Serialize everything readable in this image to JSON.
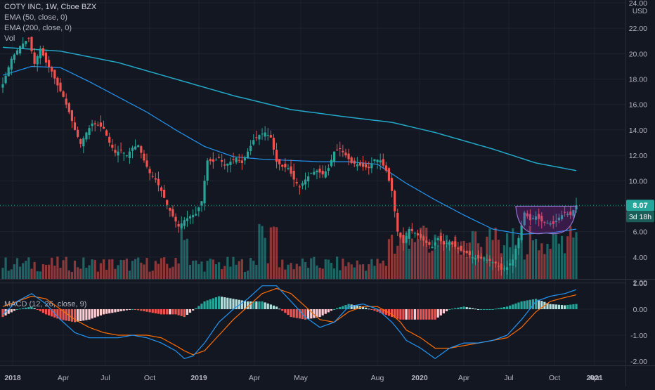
{
  "header": {
    "symbol_line": "COTY INC, 1W, Cboe BZX",
    "ema50_label": "EMA (50, close, 0)",
    "ema200_label": "EMA (200, close, 0)",
    "vol_label": "Vol",
    "currency": "USD",
    "price_tag": "8.07",
    "countdown_tag": "3d 18h"
  },
  "macd_panel": {
    "label": "MACD (12, 26, close, 9)"
  },
  "colors": {
    "background": "#131722",
    "up": "#26a69a",
    "down": "#ef5350",
    "ema50": "#2196f3",
    "ema200": "#22a8c9",
    "macd_line": "#2196f3",
    "signal_line": "#ff6d00",
    "pattern": "#9c27b0",
    "grid": "#1e222d",
    "axis_text": "#b2b5be"
  },
  "chart_data": [
    {
      "type": "candlestick",
      "title": "COTY INC, 1W, Cboe BZX",
      "price_axis": {
        "ticks": [
          "2.00",
          "4.00",
          "6.00",
          "8.00",
          "10.00",
          "12.00",
          "14.00",
          "16.00",
          "18.00",
          "20.00",
          "22.00",
          "24.00"
        ],
        "ylim": [
          1.0,
          24.5
        ],
        "last_price": 8.07,
        "unit": "USD"
      },
      "time_axis": {
        "labels": [
          "2018",
          "Apr",
          "Jul",
          "Oct",
          "2019",
          "Apr",
          "May",
          "Aug",
          "2020",
          "Apr",
          "Jul",
          "Oct",
          "2021",
          "Apr"
        ]
      },
      "close_path": [
        [
          0,
          17.6
        ],
        [
          3,
          19.6
        ],
        [
          6,
          20.6
        ],
        [
          9,
          21.2
        ],
        [
          11,
          19.2
        ],
        [
          13,
          20.4
        ],
        [
          15,
          19.3
        ],
        [
          17,
          18.6
        ],
        [
          19,
          17.5
        ],
        [
          21,
          16.6
        ],
        [
          23,
          15.4
        ],
        [
          25,
          14.0
        ],
        [
          27,
          12.9
        ],
        [
          29,
          13.8
        ],
        [
          31,
          14.5
        ],
        [
          33,
          14.4
        ],
        [
          35,
          14.1
        ],
        [
          37,
          13.0
        ],
        [
          39,
          12.2
        ],
        [
          41,
          12.4
        ],
        [
          43,
          12.0
        ],
        [
          45,
          12.6
        ],
        [
          47,
          12.8
        ],
        [
          49,
          11.6
        ],
        [
          51,
          10.6
        ],
        [
          53,
          10.1
        ],
        [
          55,
          9.2
        ],
        [
          57,
          8.1
        ],
        [
          59,
          7.2
        ],
        [
          61,
          6.4
        ],
        [
          63,
          6.9
        ],
        [
          65,
          7.2
        ],
        [
          67,
          7.4
        ],
        [
          69,
          8.4
        ],
        [
          71,
          11.6
        ],
        [
          73,
          11.5
        ],
        [
          75,
          11.8
        ],
        [
          77,
          11.2
        ],
        [
          79,
          11.5
        ],
        [
          81,
          11.8
        ],
        [
          83,
          11.4
        ],
        [
          85,
          12.3
        ],
        [
          87,
          13.2
        ],
        [
          89,
          13.6
        ],
        [
          91,
          13.8
        ],
        [
          93,
          13.4
        ],
        [
          95,
          11.5
        ],
        [
          97,
          11.1
        ],
        [
          99,
          11.0
        ],
        [
          101,
          10.1
        ],
        [
          103,
          9.5
        ],
        [
          105,
          10.1
        ],
        [
          107,
          10.6
        ],
        [
          109,
          10.8
        ],
        [
          111,
          10.5
        ],
        [
          113,
          11.0
        ],
        [
          115,
          12.3
        ],
        [
          117,
          12.5
        ],
        [
          119,
          12.0
        ],
        [
          121,
          11.4
        ],
        [
          123,
          11.3
        ],
        [
          125,
          11.1
        ],
        [
          127,
          11.0
        ],
        [
          129,
          11.7
        ],
        [
          131,
          11.6
        ],
        [
          133,
          10.8
        ],
        [
          135,
          9.2
        ],
        [
          137,
          6.0
        ],
        [
          139,
          5.1
        ],
        [
          141,
          6.2
        ],
        [
          143,
          5.9
        ],
        [
          145,
          5.5
        ],
        [
          147,
          5.1
        ],
        [
          149,
          4.8
        ],
        [
          151,
          5.5
        ],
        [
          153,
          5.0
        ],
        [
          155,
          5.2
        ],
        [
          157,
          4.8
        ],
        [
          159,
          4.5
        ],
        [
          161,
          4.3
        ],
        [
          163,
          4.0
        ],
        [
          165,
          3.9
        ],
        [
          167,
          3.9
        ],
        [
          169,
          3.7
        ],
        [
          171,
          3.5
        ],
        [
          173,
          3.0
        ],
        [
          175,
          3.2
        ],
        [
          177,
          3.8
        ],
        [
          179,
          5.5
        ],
        [
          181,
          7.5
        ],
        [
          183,
          6.9
        ],
        [
          185,
          7.2
        ],
        [
          187,
          6.8
        ],
        [
          189,
          6.7
        ],
        [
          191,
          6.6
        ],
        [
          193,
          7.1
        ],
        [
          195,
          7.5
        ],
        [
          197,
          7.3
        ],
        [
          199,
          8.07
        ]
      ],
      "ema50": [
        [
          0,
          18.3
        ],
        [
          10,
          19.0
        ],
        [
          20,
          18.9
        ],
        [
          30,
          17.8
        ],
        [
          40,
          16.6
        ],
        [
          50,
          15.4
        ],
        [
          60,
          14.0
        ],
        [
          70,
          12.7
        ],
        [
          80,
          11.9
        ],
        [
          90,
          11.7
        ],
        [
          100,
          11.6
        ],
        [
          110,
          11.5
        ],
        [
          120,
          11.5
        ],
        [
          130,
          11.3
        ],
        [
          140,
          9.8
        ],
        [
          150,
          8.5
        ],
        [
          160,
          7.3
        ],
        [
          170,
          6.2
        ],
        [
          180,
          5.8
        ],
        [
          190,
          5.9
        ],
        [
          199,
          6.2
        ]
      ],
      "ema200": [
        [
          0,
          20.5
        ],
        [
          20,
          20.2
        ],
        [
          40,
          19.3
        ],
        [
          60,
          18.0
        ],
        [
          80,
          16.7
        ],
        [
          100,
          15.6
        ],
        [
          120,
          15.0
        ],
        [
          135,
          14.6
        ],
        [
          150,
          13.8
        ],
        [
          170,
          12.5
        ],
        [
          185,
          11.4
        ],
        [
          199,
          10.8
        ]
      ],
      "pattern_annotation": {
        "type": "cup",
        "x_range": [
          178,
          199
        ],
        "price_top": 8.0,
        "price_bottom": 5.9
      },
      "volume": {
        "label": "Vol",
        "notable_spikes_x": [
          90,
          94,
          63,
          145,
          170,
          184,
          198
        ]
      }
    },
    {
      "type": "line",
      "title": "MACD (12, 26, close, 9)",
      "y_axis_ticks": [
        "-2.00",
        "-1.00",
        "0.00",
        "1.00"
      ],
      "ylim": [
        -2.2,
        1.1
      ],
      "series": [
        {
          "name": "MACD",
          "points": [
            [
              0,
              -0.2
            ],
            [
              5,
              0.3
            ],
            [
              10,
              0.6
            ],
            [
              15,
              0.2
            ],
            [
              20,
              -0.4
            ],
            [
              25,
              -0.9
            ],
            [
              30,
              -1.1
            ],
            [
              35,
              -1.1
            ],
            [
              40,
              -1.1
            ],
            [
              45,
              -1.0
            ],
            [
              50,
              -1.1
            ],
            [
              55,
              -1.3
            ],
            [
              60,
              -1.6
            ],
            [
              63,
              -1.9
            ],
            [
              66,
              -1.8
            ],
            [
              70,
              -1.3
            ],
            [
              75,
              -0.5
            ],
            [
              80,
              0.0
            ],
            [
              85,
              0.4
            ],
            [
              90,
              0.9
            ],
            [
              95,
              0.9
            ],
            [
              100,
              0.3
            ],
            [
              105,
              -0.3
            ],
            [
              110,
              -0.7
            ],
            [
              115,
              -0.5
            ],
            [
              120,
              0.1
            ],
            [
              125,
              0.2
            ],
            [
              130,
              0.0
            ],
            [
              135,
              -0.5
            ],
            [
              138,
              -0.9
            ],
            [
              140,
              -1.2
            ],
            [
              145,
              -1.5
            ],
            [
              150,
              -1.9
            ],
            [
              155,
              -1.5
            ],
            [
              160,
              -1.3
            ],
            [
              165,
              -1.3
            ],
            [
              170,
              -1.2
            ],
            [
              175,
              -1.0
            ],
            [
              180,
              -0.4
            ],
            [
              185,
              0.3
            ],
            [
              190,
              0.5
            ],
            [
              195,
              0.6
            ],
            [
              199,
              0.75
            ]
          ]
        },
        {
          "name": "Signal",
          "points": [
            [
              0,
              0.1
            ],
            [
              5,
              0.3
            ],
            [
              10,
              0.5
            ],
            [
              15,
              0.4
            ],
            [
              20,
              0.0
            ],
            [
              25,
              -0.4
            ],
            [
              30,
              -0.7
            ],
            [
              35,
              -0.9
            ],
            [
              40,
              -1.0
            ],
            [
              45,
              -1.0
            ],
            [
              50,
              -1.0
            ],
            [
              55,
              -1.1
            ],
            [
              60,
              -1.4
            ],
            [
              63,
              -1.6
            ],
            [
              66,
              -1.75
            ],
            [
              70,
              -1.6
            ],
            [
              75,
              -1.0
            ],
            [
              80,
              -0.4
            ],
            [
              85,
              0.1
            ],
            [
              90,
              0.6
            ],
            [
              95,
              0.8
            ],
            [
              100,
              0.6
            ],
            [
              105,
              0.1
            ],
            [
              110,
              -0.4
            ],
            [
              115,
              -0.5
            ],
            [
              120,
              -0.1
            ],
            [
              125,
              0.1
            ],
            [
              130,
              0.1
            ],
            [
              135,
              -0.2
            ],
            [
              138,
              -0.5
            ],
            [
              140,
              -0.8
            ],
            [
              145,
              -1.1
            ],
            [
              150,
              -1.5
            ],
            [
              155,
              -1.5
            ],
            [
              160,
              -1.4
            ],
            [
              165,
              -1.3
            ],
            [
              170,
              -1.2
            ],
            [
              175,
              -1.1
            ],
            [
              180,
              -0.7
            ],
            [
              185,
              -0.1
            ],
            [
              190,
              0.3
            ],
            [
              195,
              0.45
            ],
            [
              199,
              0.55
            ]
          ]
        }
      ]
    }
  ]
}
